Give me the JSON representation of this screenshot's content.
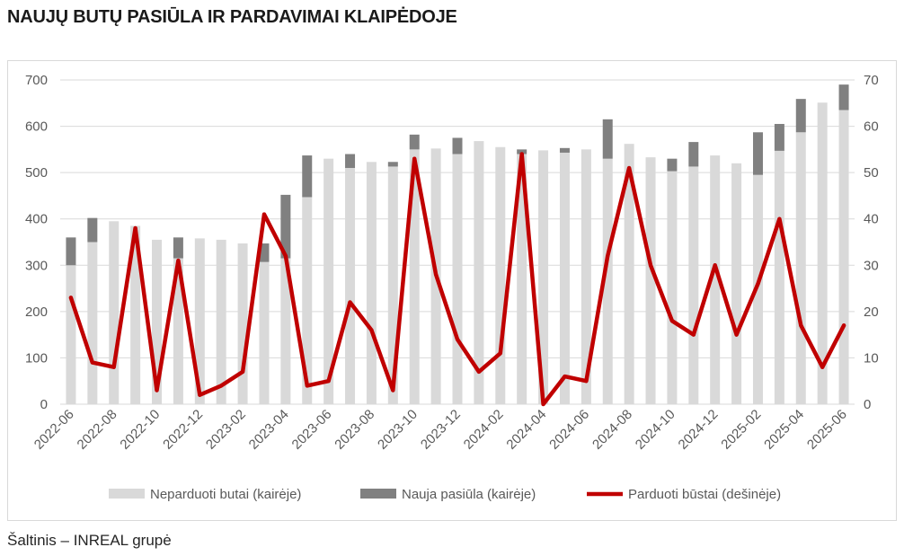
{
  "title": "NAUJŲ BUTŲ PASIŪLA IR PARDAVIMAI KLAIPĖDOJE",
  "source": "Šaltinis – INREAL grupė",
  "colors": {
    "unsold": "#d9d9d9",
    "new_supply": "#808080",
    "sold": "#c00000",
    "grid": "#d9d9d9"
  },
  "chart_data": {
    "type": "bar",
    "stacked": true,
    "combo_line": true,
    "categories": [
      "2022-06",
      "2022-07",
      "2022-08",
      "2022-09",
      "2022-10",
      "2022-11",
      "2022-12",
      "2023-01",
      "2023-02",
      "2023-03",
      "2023-04",
      "2023-05",
      "2023-06",
      "2023-07",
      "2023-08",
      "2023-09",
      "2023-10",
      "2023-11",
      "2023-12",
      "2024-01",
      "2024-02",
      "2024-03",
      "2024-04",
      "2024-05",
      "2024-06",
      "2024-07",
      "2024-08",
      "2024-09",
      "2024-10",
      "2024-11",
      "2024-12",
      "2025-01",
      "2025-02",
      "2025-03",
      "2025-04",
      "2025-05",
      "2025-06"
    ],
    "x_tick_labels": [
      "2022-06",
      "2022-08",
      "2022-10",
      "2022-12",
      "2023-02",
      "2023-04",
      "2023-06",
      "2023-08",
      "2023-10",
      "2023-12",
      "2024-02",
      "2024-04",
      "2024-06",
      "2024-08",
      "2024-10",
      "2024-12",
      "2025-02",
      "2025-04",
      "2025-06"
    ],
    "series": [
      {
        "name": "Neparduoti butai (kairėje)",
        "axis": "left",
        "kind": "bar",
        "values": [
          300,
          350,
          395,
          385,
          355,
          315,
          358,
          355,
          347,
          307,
          315,
          447,
          530,
          510,
          523,
          513,
          550,
          552,
          540,
          568,
          555,
          540,
          548,
          543,
          550,
          530,
          562,
          533,
          503,
          513,
          537,
          520,
          495,
          547,
          587,
          651,
          635
        ]
      },
      {
        "name": "Nauja pasiūla (kairėje)",
        "axis": "left",
        "kind": "bar",
        "values": [
          60,
          52,
          0,
          0,
          0,
          45,
          0,
          0,
          0,
          40,
          137,
          90,
          0,
          30,
          0,
          10,
          32,
          0,
          35,
          0,
          0,
          10,
          0,
          10,
          0,
          85,
          0,
          0,
          27,
          53,
          0,
          0,
          92,
          58,
          72,
          0,
          55
        ]
      },
      {
        "name": "Parduoti būstai (dešinėje)",
        "axis": "right",
        "kind": "line",
        "values": [
          23,
          9,
          8,
          38,
          3,
          31,
          2,
          4,
          7,
          41,
          32,
          4,
          5,
          22,
          16,
          3,
          53,
          28,
          14,
          7,
          11,
          54,
          0,
          6,
          5,
          32,
          51,
          30,
          18,
          15,
          30,
          15,
          26,
          40,
          17,
          8,
          17
        ]
      }
    ],
    "y_left": {
      "min": 0,
      "max": 700,
      "step": 100,
      "ticks": [
        "0",
        "100",
        "200",
        "300",
        "400",
        "500",
        "600",
        "700"
      ]
    },
    "y_right": {
      "min": 0,
      "max": 70,
      "step": 10,
      "ticks": [
        "0",
        "10",
        "20",
        "30",
        "40",
        "50",
        "60",
        "70"
      ]
    },
    "grid": true,
    "legend_position": "bottom"
  }
}
